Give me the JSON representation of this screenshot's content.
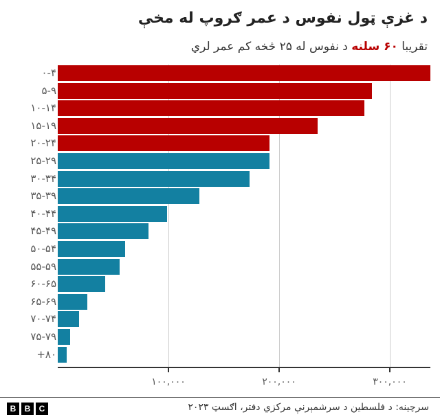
{
  "header": {
    "title": "د غزې ټول نفوس د عمر ګروپ له مخې",
    "subtitle_pre": "تقریبا ",
    "subtitle_highlight": "۶۰ سلنه",
    "subtitle_post": " د نفوس له ۲۵ څخه کم عمر لري"
  },
  "axis": {
    "ticks": [
      {
        "label": "۱۰۰,۰۰۰",
        "value": 100000
      },
      {
        "label": "۲۰۰,۰۰۰",
        "value": 200000
      },
      {
        "label": "۳۰۰,۰۰۰",
        "value": 300000
      }
    ]
  },
  "colors": {
    "under25": "#b80000",
    "over25": "#1380a1",
    "grid": "#cccccc"
  },
  "footer": {
    "source": "سرچینه: د فلسطین د سرشمېرنې مرکزي دفتر، اګسټ ۲۰۲۳",
    "logo": [
      "B",
      "B",
      "C"
    ]
  },
  "chart_data": {
    "type": "bar",
    "orientation": "horizontal",
    "title": "د غزې ټول نفوس د عمر ګروپ له مخې",
    "subtitle": "تقریبا ۶۰ سلنه د نفوس له ۲۵ څخه کم عمر لري",
    "categories": [
      "۰-۴",
      "۵-۹",
      "۱۰-۱۴",
      "۱۵-۱۹",
      "۲۰-۲۴",
      "۲۵-۲۹",
      "۳۰-۳۴",
      "۳۵-۳۹",
      "۴۰-۴۴",
      "۴۵-۴۹",
      "۵۰-۵۴",
      "۵۵-۵۹",
      "۶۰-۶۵",
      "۶۵-۶۹",
      "۷۰-۷۴",
      "۷۵-۷۹",
      "+۸۰"
    ],
    "values": [
      337000,
      284000,
      277000,
      235000,
      191000,
      191000,
      173000,
      128000,
      99000,
      82000,
      61000,
      56000,
      43000,
      27000,
      19000,
      11000,
      8000
    ],
    "groups": [
      "under25",
      "under25",
      "under25",
      "under25",
      "under25",
      "over25",
      "over25",
      "over25",
      "over25",
      "over25",
      "over25",
      "over25",
      "over25",
      "over25",
      "over25",
      "over25",
      "over25"
    ],
    "xlabel": "",
    "ylabel": "",
    "xlim": [
      0,
      337000
    ],
    "grid": true,
    "source": "سرچینه: د فلسطین د سرشمېرنې مرکزي دفتر، اګسټ ۲۰۲۳"
  }
}
